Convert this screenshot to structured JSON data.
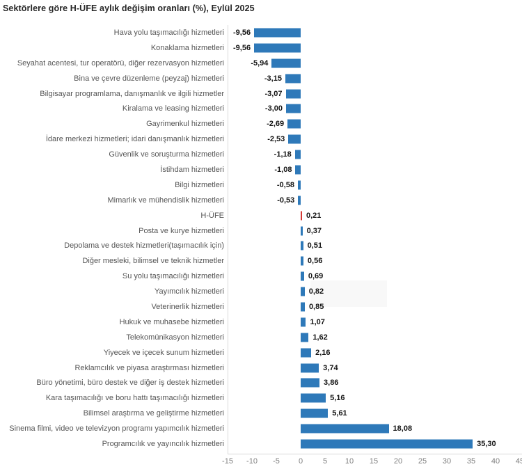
{
  "title": "Sektörlere göre H-ÜFE aylık değişim oranları (%), Eylül 2025",
  "colors": {
    "bar": "#2e79b9",
    "highlight_bar": "#d43732",
    "axis_line": "#d9d9d9",
    "label_text": "#555555",
    "value_text": "#141414",
    "tick_text": "#7f7f7f"
  },
  "chart_data": {
    "type": "bar",
    "orientation": "horizontal",
    "title": "Sektörlere göre H-ÜFE aylık değişim oranları (%), Eylül 2025",
    "xlabel": "",
    "ylabel": "",
    "xlim": [
      -15,
      45
    ],
    "grid": false,
    "legend": "none",
    "x_ticks": [
      "-15",
      "-10",
      "-5",
      "0",
      "5",
      "10",
      "15",
      "20",
      "25",
      "30",
      "35",
      "40",
      "45"
    ],
    "x_tick_values": [
      -15,
      -10,
      -5,
      0,
      5,
      10,
      15,
      20,
      25,
      30,
      35,
      40,
      45
    ],
    "highlight_index": 12,
    "categories": [
      "Hava yolu taşımacılığı hizmetleri",
      "Konaklama hizmetleri",
      "Seyahat acentesi, tur operatörü, diğer rezervasyon hizmetleri",
      "Bina ve çevre düzenleme (peyzaj) hizmetleri",
      "Bilgisayar programlama, danışmanlık ve ilgili hizmetler",
      "Kiralama ve leasing hizmetleri",
      "Gayrimenkul hizmetleri",
      "İdare merkezi hizmetleri; idari danışmanlık hizmetleri",
      "Güvenlik ve soruşturma hizmetleri",
      "İstihdam hizmetleri",
      "Bilgi hizmetleri",
      "Mimarlık ve mühendislik hizmetleri",
      "H-ÜFE",
      "Posta ve kurye hizmetleri",
      "Depolama ve destek hizmetleri(taşımacılık için)",
      "Diğer mesleki, bilimsel ve teknik hizmetler",
      "Su yolu taşımacılığı hizmetleri",
      "Yayımcılık hizmetleri",
      "Veterinerlik hizmetleri",
      "Hukuk ve muhasebe hizmetleri",
      "Telekomünikasyon hizmetleri",
      "Yiyecek ve içecek sunum hizmetleri",
      "Reklamcılık ve piyasa araştırması hizmetleri",
      "Büro yönetimi, büro destek ve diğer iş destek hizmetleri",
      "Kara taşımacılığı ve boru hattı taşımacılığı hizmetleri",
      "Bilimsel araştırma ve geliştirme hizmetleri",
      "Sinema filmi, video ve televizyon programı yapımcılık hizmetleri",
      "Programcılık ve yayıncılık hizmetleri"
    ],
    "values": [
      -9.56,
      -9.56,
      -5.94,
      -3.15,
      -3.07,
      -3.0,
      -2.69,
      -2.53,
      -1.18,
      -1.08,
      -0.58,
      -0.53,
      0.21,
      0.37,
      0.51,
      0.56,
      0.69,
      0.82,
      0.85,
      1.07,
      1.62,
      2.16,
      3.74,
      3.86,
      5.16,
      5.61,
      18.08,
      35.3
    ],
    "value_labels": [
      "-9,56",
      "-9,56",
      "-5,94",
      "-3,15",
      "-3,07",
      "-3,00",
      "-2,69",
      "-2,53",
      "-1,18",
      "-1,08",
      "-0,58",
      "-0,53",
      "0,21",
      "0,37",
      "0,51",
      "0,56",
      "0,69",
      "0,82",
      "0,85",
      "1,07",
      "1,62",
      "2,16",
      "3,74",
      "3,86",
      "5,16",
      "5,61",
      "18,08",
      "35,30"
    ]
  }
}
